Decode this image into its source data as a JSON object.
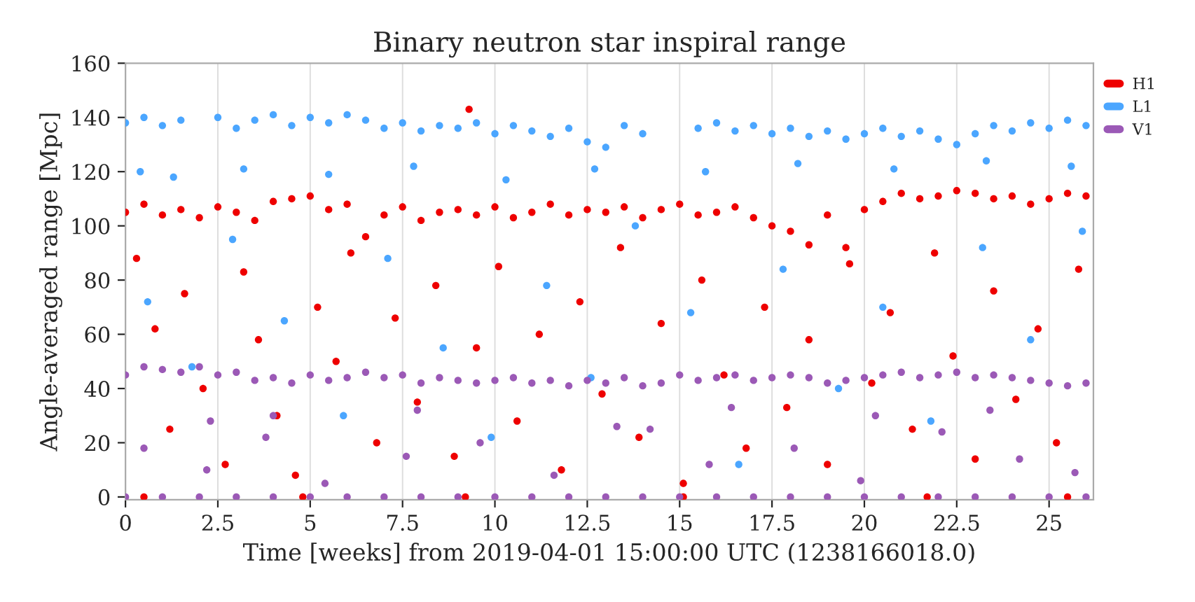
{
  "chart_data": {
    "type": "scatter",
    "title": "Binary neutron star inspiral range",
    "xlabel": "Time [weeks] from 2019-04-01 15:00:00 UTC (1238166018.0)",
    "ylabel": "Angle-averaged range [Mpc]",
    "xlim": [
      0,
      26.2
    ],
    "ylim": [
      -1,
      160
    ],
    "xticks": [
      0,
      2.5,
      5,
      7.5,
      10,
      12.5,
      15,
      17.5,
      20,
      22.5,
      25
    ],
    "yticks": [
      0,
      20,
      40,
      60,
      80,
      100,
      120,
      140,
      160
    ],
    "grid": "x",
    "legend": "top right",
    "marker": "circle",
    "series": [
      {
        "name": "H1",
        "color": "#ee0000",
        "x": [
          0,
          0.5,
          1,
          1.5,
          2,
          2.5,
          3,
          3.5,
          4,
          4.5,
          5,
          5.5,
          6,
          6.5,
          7,
          7.5,
          8,
          8.5,
          9,
          9.5,
          10,
          10.5,
          11,
          11.5,
          12,
          12.5,
          13,
          13.5,
          14,
          14.5,
          15,
          15.5,
          16,
          16.5,
          17,
          17.5,
          18,
          18.5,
          19,
          19.5,
          20,
          20.5,
          21,
          21.5,
          22,
          22.5,
          23,
          23.5,
          24,
          24.5,
          25,
          25.5,
          26,
          0.3,
          0.8,
          1.2,
          1.6,
          2.1,
          2.7,
          3.2,
          3.6,
          4.1,
          4.6,
          5.2,
          5.7,
          6.1,
          6.8,
          7.3,
          7.9,
          8.4,
          8.9,
          9.5,
          10.1,
          10.6,
          11.2,
          11.8,
          12.3,
          12.9,
          13.4,
          13.9,
          14.5,
          15.1,
          15.6,
          16.2,
          16.8,
          17.3,
          17.9,
          18.5,
          19.0,
          19.6,
          20.2,
          20.7,
          21.3,
          21.9,
          22.4,
          23.0,
          23.5,
          24.1,
          24.7,
          25.2,
          25.8,
          0.5,
          4.8,
          9.2,
          15.1,
          21.7,
          25.5,
          9.3
        ],
        "values": [
          105,
          108,
          104,
          106,
          103,
          107,
          105,
          102,
          109,
          110,
          111,
          106,
          108,
          96,
          104,
          107,
          102,
          105,
          106,
          104,
          107,
          103,
          105,
          108,
          104,
          106,
          105,
          107,
          103,
          106,
          108,
          104,
          105,
          107,
          103,
          100,
          98,
          93,
          104,
          92,
          106,
          109,
          112,
          110,
          111,
          113,
          112,
          110,
          111,
          108,
          110,
          112,
          111,
          88,
          62,
          25,
          75,
          40,
          12,
          83,
          58,
          30,
          8,
          70,
          50,
          90,
          20,
          66,
          35,
          78,
          15,
          55,
          85,
          28,
          60,
          10,
          72,
          38,
          92,
          22,
          64,
          5,
          80,
          45,
          18,
          70,
          33,
          58,
          12,
          86,
          42,
          68,
          25,
          90,
          52,
          14,
          76,
          36,
          62,
          20,
          84,
          0,
          0,
          0,
          0,
          0,
          0,
          143
        ]
      },
      {
        "name": "L1",
        "color": "#4ba6ff",
        "x": [
          0,
          0.5,
          1,
          1.5,
          2.5,
          3,
          3.5,
          4,
          4.5,
          5,
          5.5,
          6,
          6.5,
          7,
          7.5,
          8,
          8.5,
          9,
          9.5,
          10,
          10.5,
          11,
          11.5,
          12,
          12.5,
          13,
          13.5,
          14,
          15.5,
          16,
          16.5,
          17,
          17.5,
          18,
          18.5,
          19,
          19.5,
          20,
          20.5,
          21,
          21.5,
          22,
          22.5,
          23,
          23.5,
          24,
          24.5,
          25,
          25.5,
          26,
          0.4,
          1.3,
          3.2,
          5.5,
          7.8,
          10.3,
          12.7,
          15.7,
          18.2,
          20.8,
          23.3,
          25.6,
          0.6,
          1.8,
          2.9,
          4.3,
          5.9,
          7.1,
          8.6,
          9.9,
          11.4,
          12.6,
          13.8,
          15.3,
          16.6,
          17.8,
          19.3,
          20.5,
          21.8,
          23.2,
          24.5,
          25.9
        ],
        "values": [
          138,
          140,
          137,
          139,
          140,
          136,
          139,
          141,
          137,
          140,
          138,
          141,
          139,
          136,
          138,
          135,
          137,
          136,
          138,
          134,
          137,
          135,
          133,
          136,
          131,
          129,
          137,
          134,
          136,
          138,
          135,
          137,
          134,
          136,
          133,
          135,
          132,
          134,
          136,
          133,
          135,
          132,
          130,
          134,
          137,
          135,
          138,
          136,
          139,
          137,
          120,
          118,
          121,
          119,
          122,
          117,
          121,
          120,
          123,
          121,
          124,
          122,
          72,
          48,
          95,
          65,
          30,
          88,
          55,
          22,
          78,
          44,
          100,
          68,
          12,
          84,
          40,
          70,
          28,
          92,
          58,
          98
        ]
      },
      {
        "name": "V1",
        "color": "#9b59b6",
        "x": [
          0,
          0.5,
          1,
          1.5,
          2,
          2.5,
          3,
          3.5,
          4,
          4.5,
          5,
          5.5,
          6,
          6.5,
          7,
          7.5,
          8,
          8.5,
          9,
          9.5,
          10,
          10.5,
          11,
          11.5,
          12,
          12.5,
          13,
          13.5,
          14,
          14.5,
          15,
          15.5,
          16,
          16.5,
          17,
          17.5,
          18,
          18.5,
          19,
          19.5,
          20,
          20.5,
          21,
          21.5,
          22,
          22.5,
          23,
          23.5,
          24,
          24.5,
          25,
          25.5,
          26,
          2.3,
          4.0,
          7.9,
          14.2,
          16.4,
          20.3,
          23.4,
          0.5,
          2.2,
          3.8,
          5.4,
          7.6,
          9.6,
          11.6,
          13.3,
          15.8,
          18.1,
          19.9,
          22.1,
          24.2,
          25.7,
          0,
          1,
          2,
          3,
          4,
          5,
          6,
          7,
          8,
          9,
          10,
          11,
          12,
          13,
          14,
          15,
          16,
          17,
          18,
          19,
          20,
          21,
          22,
          23,
          24,
          25,
          26
        ],
        "values": [
          45,
          48,
          47,
          46,
          48,
          45,
          46,
          43,
          44,
          42,
          45,
          43,
          44,
          46,
          44,
          45,
          42,
          44,
          43,
          42,
          43,
          44,
          42,
          43,
          41,
          43,
          42,
          44,
          41,
          42,
          45,
          43,
          44,
          45,
          43,
          44,
          45,
          44,
          42,
          43,
          44,
          45,
          46,
          44,
          45,
          46,
          44,
          45,
          44,
          43,
          42,
          41,
          42,
          28,
          30,
          32,
          25,
          33,
          30,
          32,
          18,
          10,
          22,
          5,
          15,
          20,
          8,
          26,
          12,
          18,
          6,
          24,
          14,
          9,
          0,
          0,
          0,
          0,
          0,
          0,
          0,
          0,
          0,
          0,
          0,
          0,
          0,
          0,
          0,
          0,
          0,
          0,
          0,
          0,
          0,
          0,
          0,
          0,
          0,
          0,
          0
        ]
      }
    ]
  }
}
